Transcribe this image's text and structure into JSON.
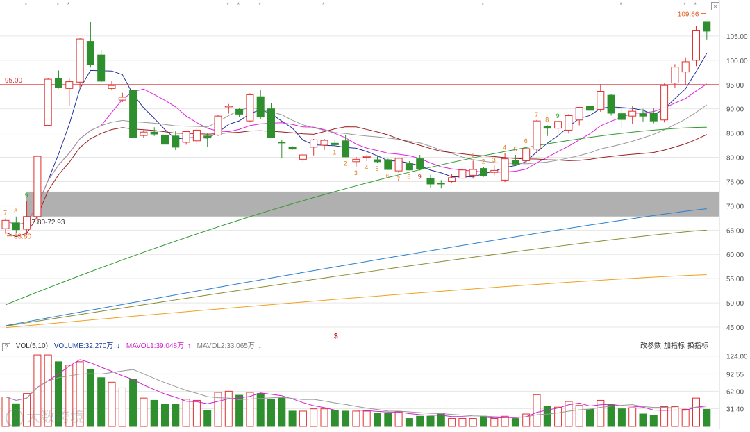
{
  "chart_data": {
    "type": "candlestick",
    "price_axis": {
      "ticks": [
        "105.00",
        "100.00",
        "95.00",
        "90.00",
        "85.00",
        "80.00",
        "75.00",
        "70.00",
        "65.00",
        "60.00",
        "55.00",
        "50.00",
        "45.00"
      ],
      "ylim": [
        44,
        111
      ]
    },
    "volume_axis": {
      "ticks": [
        "124.00",
        "92.55",
        "62.00",
        "31.40"
      ],
      "ylim": [
        0,
        131
      ]
    },
    "candles": [
      {
        "o": 65.3,
        "h": 67.4,
        "l": 64.2,
        "c": 67.0,
        "v": 52,
        "up": true
      },
      {
        "o": 66.5,
        "h": 67.8,
        "l": 64.4,
        "c": 65.1,
        "v": 40,
        "up": false
      },
      {
        "o": 65.2,
        "h": 71.0,
        "l": 63.9,
        "c": 67.8,
        "v": 58,
        "up": true
      },
      {
        "o": 67.8,
        "h": 80.3,
        "l": 67.0,
        "c": 80.2,
        "v": 126,
        "up": true
      },
      {
        "o": 86.6,
        "h": 96.3,
        "l": 86.4,
        "c": 96.1,
        "v": 126,
        "up": true
      },
      {
        "o": 96.3,
        "h": 97.9,
        "l": 94.2,
        "c": 94.4,
        "v": 114,
        "up": false
      },
      {
        "o": 94.2,
        "h": 96.3,
        "l": 90.6,
        "c": 95.6,
        "v": 108,
        "up": true
      },
      {
        "o": 95.5,
        "h": 104.6,
        "l": 94.4,
        "c": 104.4,
        "v": 114,
        "up": true
      },
      {
        "o": 103.9,
        "h": 108.0,
        "l": 98.5,
        "c": 99.1,
        "v": 100,
        "up": false
      },
      {
        "o": 101.1,
        "h": 102.1,
        "l": 95.4,
        "c": 95.7,
        "v": 86,
        "up": false
      },
      {
        "o": 94.8,
        "h": 95.8,
        "l": 93.8,
        "c": 94.2,
        "v": 78,
        "up": true
      },
      {
        "o": 92.4,
        "h": 93.3,
        "l": 91.4,
        "c": 91.8,
        "v": 68,
        "up": true
      },
      {
        "o": 93.8,
        "h": 94.0,
        "l": 84.0,
        "c": 84.1,
        "v": 83,
        "up": false
      },
      {
        "o": 84.5,
        "h": 85.6,
        "l": 84.0,
        "c": 85.2,
        "v": 50,
        "up": true
      },
      {
        "o": 85.2,
        "h": 86.2,
        "l": 84.4,
        "c": 84.8,
        "v": 46,
        "up": false
      },
      {
        "o": 84.6,
        "h": 85.0,
        "l": 82.1,
        "c": 82.7,
        "v": 39,
        "up": false
      },
      {
        "o": 84.4,
        "h": 85.4,
        "l": 81.5,
        "c": 82.1,
        "v": 39,
        "up": false
      },
      {
        "o": 83.1,
        "h": 85.5,
        "l": 82.6,
        "c": 85.3,
        "v": 48,
        "up": true
      },
      {
        "o": 83.4,
        "h": 86.1,
        "l": 82.8,
        "c": 85.6,
        "v": 46,
        "up": true
      },
      {
        "o": 84.4,
        "h": 85.0,
        "l": 82.2,
        "c": 84.0,
        "v": 28,
        "up": false
      },
      {
        "o": 84.6,
        "h": 88.7,
        "l": 84.4,
        "c": 88.5,
        "v": 60,
        "up": true
      },
      {
        "o": 90.4,
        "h": 91.0,
        "l": 89.0,
        "c": 90.6,
        "v": 62,
        "up": true
      },
      {
        "o": 89.9,
        "h": 90.1,
        "l": 88.3,
        "c": 88.9,
        "v": 55,
        "up": false
      },
      {
        "o": 87.5,
        "h": 93.2,
        "l": 87.2,
        "c": 92.9,
        "v": 60,
        "up": true
      },
      {
        "o": 92.5,
        "h": 93.9,
        "l": 87.8,
        "c": 88.3,
        "v": 58,
        "up": false
      },
      {
        "o": 90.0,
        "h": 91.1,
        "l": 84.0,
        "c": 84.1,
        "v": 48,
        "up": false
      },
      {
        "o": 83.1,
        "h": 83.5,
        "l": 79.8,
        "c": 83.1,
        "v": 50,
        "up": false
      },
      {
        "o": 82.1,
        "h": 82.3,
        "l": 81.6,
        "c": 81.7,
        "v": 27,
        "up": false
      },
      {
        "o": 79.6,
        "h": 80.8,
        "l": 79.0,
        "c": 80.5,
        "v": 27,
        "up": true
      },
      {
        "o": 82.1,
        "h": 83.8,
        "l": 80.4,
        "c": 83.6,
        "v": 31,
        "up": true
      },
      {
        "o": 82.5,
        "h": 83.8,
        "l": 81.5,
        "c": 83.5,
        "v": 31,
        "up": true
      },
      {
        "o": 82.9,
        "h": 83.5,
        "l": 82.3,
        "c": 82.6,
        "v": 28,
        "up": false
      },
      {
        "o": 83.4,
        "h": 84.6,
        "l": 80.0,
        "c": 80.1,
        "v": 27,
        "up": false
      },
      {
        "o": 79.1,
        "h": 80.1,
        "l": 78.1,
        "c": 79.6,
        "v": 27,
        "up": true
      },
      {
        "o": 80.0,
        "h": 80.5,
        "l": 79.2,
        "c": 80.2,
        "v": 27,
        "up": true
      },
      {
        "o": 79.5,
        "h": 80.4,
        "l": 78.9,
        "c": 79.1,
        "v": 23,
        "up": false
      },
      {
        "o": 79.5,
        "h": 79.7,
        "l": 77.4,
        "c": 77.5,
        "v": 23,
        "up": false
      },
      {
        "o": 77.2,
        "h": 79.9,
        "l": 76.8,
        "c": 79.8,
        "v": 26,
        "up": true
      },
      {
        "o": 78.7,
        "h": 79.2,
        "l": 77.3,
        "c": 77.4,
        "v": 14,
        "up": false
      },
      {
        "o": 79.7,
        "h": 80.5,
        "l": 77.3,
        "c": 77.6,
        "v": 18,
        "up": false
      },
      {
        "o": 75.6,
        "h": 76.4,
        "l": 73.8,
        "c": 74.5,
        "v": 18,
        "up": false
      },
      {
        "o": 74.5,
        "h": 75.3,
        "l": 73.6,
        "c": 74.7,
        "v": 23,
        "up": false
      },
      {
        "o": 75.0,
        "h": 76.6,
        "l": 74.8,
        "c": 75.8,
        "v": 14,
        "up": true
      },
      {
        "o": 75.7,
        "h": 77.5,
        "l": 75.6,
        "c": 77.4,
        "v": 14,
        "up": true
      },
      {
        "o": 76.3,
        "h": 79.3,
        "l": 75.6,
        "c": 77.5,
        "v": 14,
        "up": true
      },
      {
        "o": 76.2,
        "h": 78.0,
        "l": 76.0,
        "c": 77.7,
        "v": 18,
        "up": false
      },
      {
        "o": 76.9,
        "h": 78.3,
        "l": 76.3,
        "c": 77.3,
        "v": 14,
        "up": true
      },
      {
        "o": 75.3,
        "h": 80.9,
        "l": 74.9,
        "c": 79.7,
        "v": 18,
        "up": true
      },
      {
        "o": 78.6,
        "h": 80.5,
        "l": 78.4,
        "c": 79.3,
        "v": 14,
        "up": false
      },
      {
        "o": 79.3,
        "h": 82.2,
        "l": 78.8,
        "c": 81.8,
        "v": 22,
        "up": true
      },
      {
        "o": 81.7,
        "h": 87.7,
        "l": 81.3,
        "c": 87.5,
        "v": 56,
        "up": true
      },
      {
        "o": 86.0,
        "h": 86.6,
        "l": 84.4,
        "c": 86.3,
        "v": 35,
        "up": false
      },
      {
        "o": 86.0,
        "h": 87.4,
        "l": 84.8,
        "c": 87.4,
        "v": 34,
        "up": true
      },
      {
        "o": 85.6,
        "h": 88.9,
        "l": 84.9,
        "c": 88.6,
        "v": 44,
        "up": true
      },
      {
        "o": 87.7,
        "h": 90.4,
        "l": 86.6,
        "c": 90.3,
        "v": 37,
        "up": true
      },
      {
        "o": 89.7,
        "h": 90.6,
        "l": 88.3,
        "c": 90.5,
        "v": 30,
        "up": false
      },
      {
        "o": 89.9,
        "h": 95.1,
        "l": 89.4,
        "c": 93.6,
        "v": 46,
        "up": true
      },
      {
        "o": 92.8,
        "h": 93.1,
        "l": 88.6,
        "c": 89.1,
        "v": 38,
        "up": false
      },
      {
        "o": 89.0,
        "h": 90.3,
        "l": 86.2,
        "c": 87.8,
        "v": 31,
        "up": false
      },
      {
        "o": 88.5,
        "h": 90.5,
        "l": 86.9,
        "c": 89.5,
        "v": 33,
        "up": true
      },
      {
        "o": 89.0,
        "h": 90.0,
        "l": 87.4,
        "c": 88.5,
        "v": 22,
        "up": false
      },
      {
        "o": 87.5,
        "h": 90.2,
        "l": 87.0,
        "c": 89.1,
        "v": 20,
        "up": false
      },
      {
        "o": 87.7,
        "h": 95.2,
        "l": 87.2,
        "c": 94.8,
        "v": 35,
        "up": true
      },
      {
        "o": 95.3,
        "h": 99.2,
        "l": 94.4,
        "c": 98.6,
        "v": 35,
        "up": true
      },
      {
        "o": 97.6,
        "h": 100.6,
        "l": 95.0,
        "c": 99.7,
        "v": 30,
        "up": true
      },
      {
        "o": 100.0,
        "h": 107.1,
        "l": 98.8,
        "c": 106.2,
        "v": 50,
        "up": true
      },
      {
        "o": 106.0,
        "h": 108.0,
        "l": 104.3,
        "c": 108.0,
        "v": 30,
        "up": false
      }
    ],
    "annotations": {
      "hline_label": "95.00",
      "high_label": "109.66",
      "low_label": "63.80",
      "zone_label": "67.80-72.93",
      "marker_S": "$",
      "seq_counts": [
        {
          "idx": 0,
          "text": "7",
          "pos": "above",
          "color": "#e08020"
        },
        {
          "idx": 1,
          "text": "8",
          "pos": "above",
          "color": "#e08020"
        },
        {
          "idx": 2,
          "text": "9",
          "pos": "above",
          "color": "#20b020"
        },
        {
          "idx": 31,
          "text": "1",
          "pos": "below",
          "color": "#e08020"
        },
        {
          "idx": 32,
          "text": "2",
          "pos": "below",
          "color": "#e08020"
        },
        {
          "idx": 33,
          "text": "3",
          "pos": "below",
          "color": "#e08020"
        },
        {
          "idx": 34,
          "text": "4",
          "pos": "below",
          "color": "#e08020"
        },
        {
          "idx": 35,
          "text": "5",
          "pos": "below",
          "color": "#e08020"
        },
        {
          "idx": 36,
          "text": "6",
          "pos": "below",
          "color": "#e08020"
        },
        {
          "idx": 37,
          "text": "7",
          "pos": "below",
          "color": "#e08020"
        },
        {
          "idx": 38,
          "text": "8",
          "pos": "below",
          "color": "#e08020"
        },
        {
          "idx": 39,
          "text": "9",
          "pos": "below",
          "color": "#d02020"
        },
        {
          "idx": 44,
          "text": "1",
          "pos": "above",
          "color": "#e08020"
        },
        {
          "idx": 45,
          "text": "2",
          "pos": "above",
          "color": "#e08020"
        },
        {
          "idx": 46,
          "text": "3",
          "pos": "above",
          "color": "#e08020"
        },
        {
          "idx": 47,
          "text": "4",
          "pos": "above",
          "color": "#e08020"
        },
        {
          "idx": 48,
          "text": "5",
          "pos": "above",
          "color": "#e08020"
        },
        {
          "idx": 49,
          "text": "6",
          "pos": "above",
          "color": "#e08020"
        },
        {
          "idx": 50,
          "text": "7",
          "pos": "above",
          "color": "#e08020"
        },
        {
          "idx": 51,
          "text": "8",
          "pos": "above",
          "color": "#e08020"
        },
        {
          "idx": 52,
          "text": "9",
          "pos": "above",
          "color": "#20b020"
        }
      ]
    },
    "top_markers": [
      "*",
      "*",
      "*",
      "*",
      "*",
      "*",
      "*",
      "*",
      "*",
      "*",
      "*"
    ],
    "colors": {
      "up": "#e03030",
      "down": "#2f8f2f",
      "ma5": "#1f2f9a",
      "ma10": "#e020e0",
      "ma20": "#999999",
      "ma30": "#9a2020",
      "ma60": "#2f9a2f",
      "ma120": "#2a7fd0",
      "ma250": "#8a8a30",
      "ma_long": "#f0a020",
      "grid": "#e6e6e6",
      "zone": "#b0b0b0"
    }
  },
  "volume_header": {
    "question": "?",
    "vol": "VOL(5,10)",
    "volume": "VOLUME:32.270万",
    "volume_arrow": "↓",
    "mavol1": "MAVOL1:39.048万",
    "mavol1_arrow": "↑",
    "mavol2": "MAVOL2:33.065万",
    "mavol2_arrow": "↓",
    "btn_params": "改参数",
    "btn_add": "加指标",
    "btn_switch": "换指标",
    "close": "×"
  },
  "watermark": {
    "icon": "∞",
    "text": "大数跨境"
  }
}
